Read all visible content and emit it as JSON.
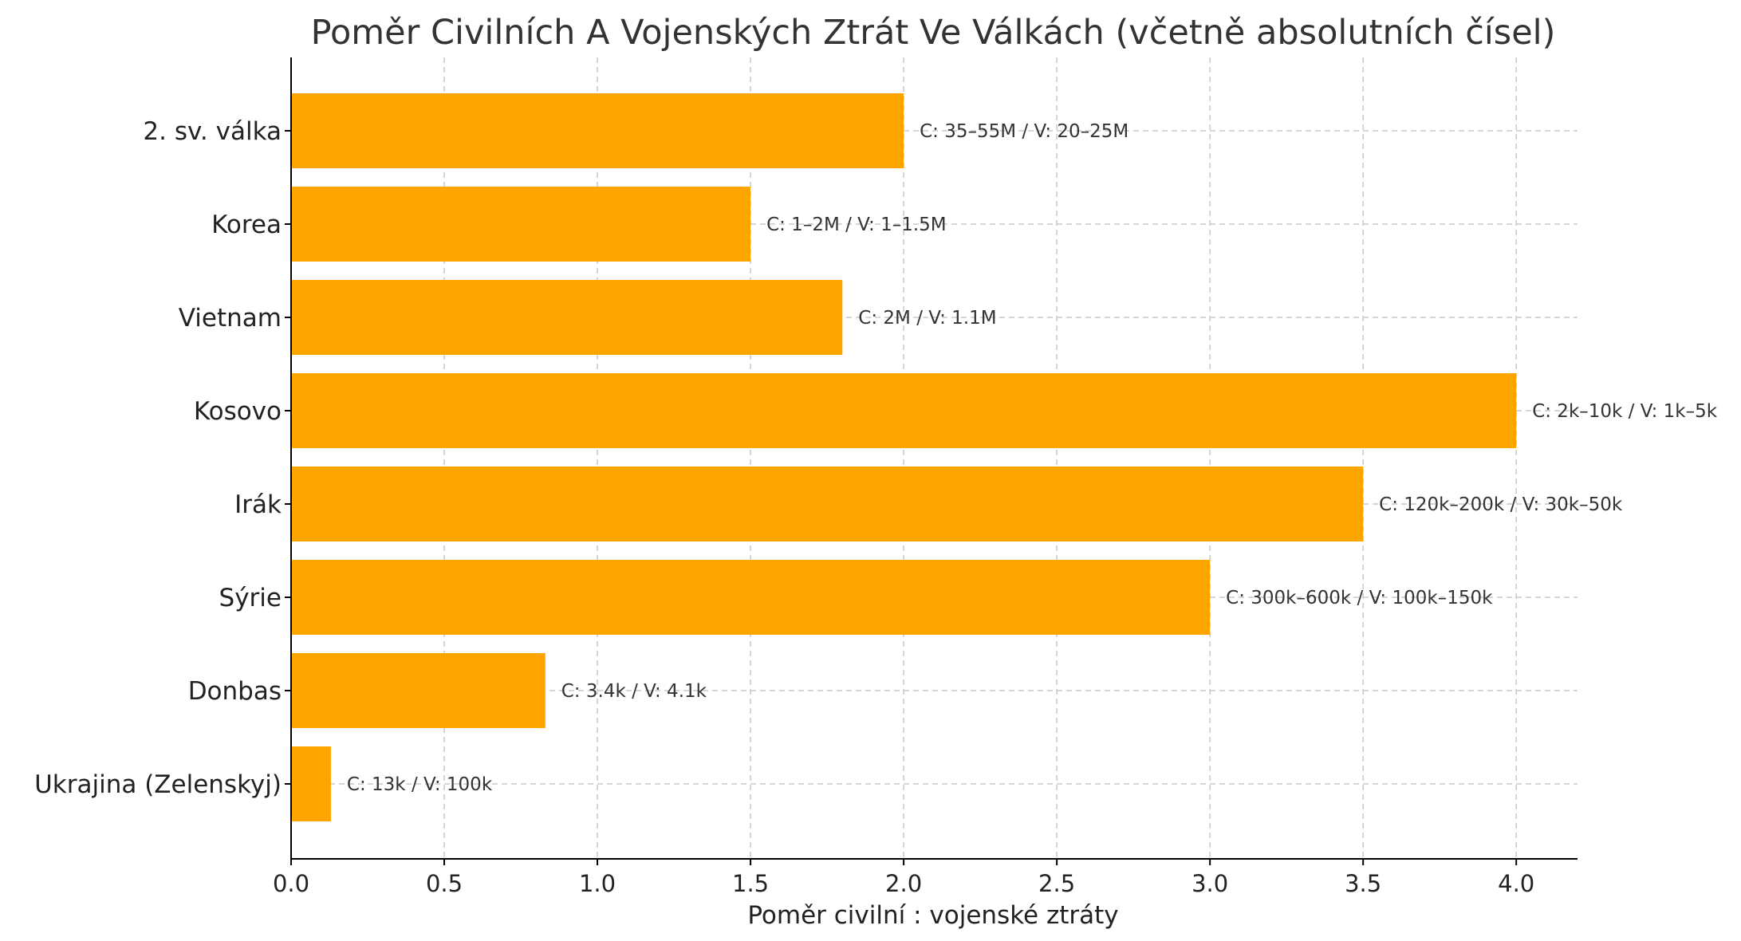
{
  "chart_data": {
    "type": "bar",
    "orientation": "horizontal",
    "title": "Poměr Civilních A Vojenských Ztrát Ve Válkách (včetně absolutních čísel)",
    "xlabel": "Poměr civilní : vojenské ztráty",
    "ylabel": "",
    "categories": [
      "2. sv. válka",
      "Korea",
      "Vietnam",
      "Kosovo",
      "Irák",
      "Sýrie",
      "Donbas",
      "Ukrajina (Zelenskyj)"
    ],
    "values": [
      2.0,
      1.5,
      1.8,
      4.0,
      3.5,
      3.0,
      0.83,
      0.13
    ],
    "data_labels": [
      "C: 35–55M / V: 20–25M",
      "C: 1–2M / V: 1–1.5M",
      "C: 2M / V: 1.1M",
      "C: 2k–10k / V: 1k–5k",
      "C: 120k–200k / V: 30k–50k",
      "C: 300k–600k / V: 100k–150k",
      "C: 3.4k / V: 4.1k",
      "C: 13k / V: 100k"
    ],
    "xticks": [
      "0.0",
      "0.5",
      "1.0",
      "1.5",
      "2.0",
      "2.5",
      "3.0",
      "3.5",
      "4.0"
    ],
    "xlim": [
      0,
      4.2
    ],
    "grid": true,
    "bar_color": "#FFA500"
  }
}
